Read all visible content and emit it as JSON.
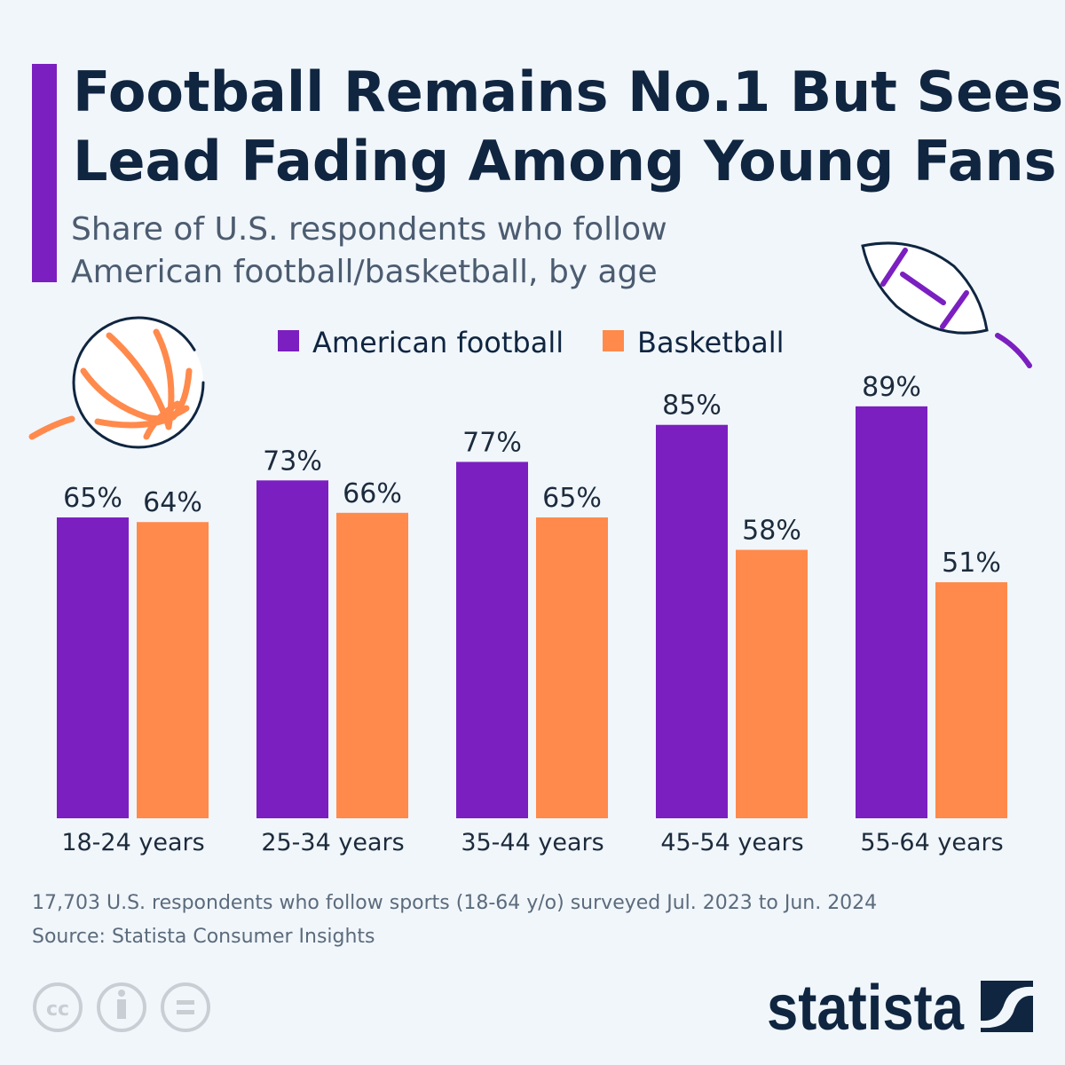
{
  "title_lines": [
    "Football Remains No.1 But Sees",
    "Lead Fading Among Young Fans"
  ],
  "subtitle_lines": [
    "Share of U.S. respondents who follow",
    "American football/basketball, by age"
  ],
  "colors": {
    "accent": "#7b1fc0",
    "football": "#7b1fc0",
    "basketball": "#ff8a4c",
    "title": "#0f2540",
    "background": "#f1f6fb"
  },
  "chart_data": {
    "type": "bar",
    "categories": [
      "18-24 years",
      "25-34 years",
      "35-44 years",
      "45-54 years",
      "55-64 years"
    ],
    "series": [
      {
        "name": "American football",
        "values": [
          65,
          73,
          77,
          85,
          89
        ],
        "labels": [
          "65%",
          "73%",
          "77%",
          "85%",
          "89%"
        ]
      },
      {
        "name": "Basketball",
        "values": [
          64,
          66,
          65,
          58,
          51
        ],
        "labels": [
          "64%",
          "66%",
          "65%",
          "58%",
          "51%"
        ]
      }
    ],
    "unit": "%",
    "ylim": [
      0,
      100
    ],
    "grid": false,
    "legend_position": "top-center"
  },
  "footer": {
    "note": "17,703 U.S. respondents who follow sports (18-64 y/o) surveyed Jul. 2023 to Jun. 2024",
    "source": "Source: Statista Consumer Insights"
  },
  "icons": [
    "basketball-icon",
    "american-football-icon",
    "cc-icon",
    "attribution-icon",
    "no-derivatives-icon"
  ],
  "brand": "statista"
}
